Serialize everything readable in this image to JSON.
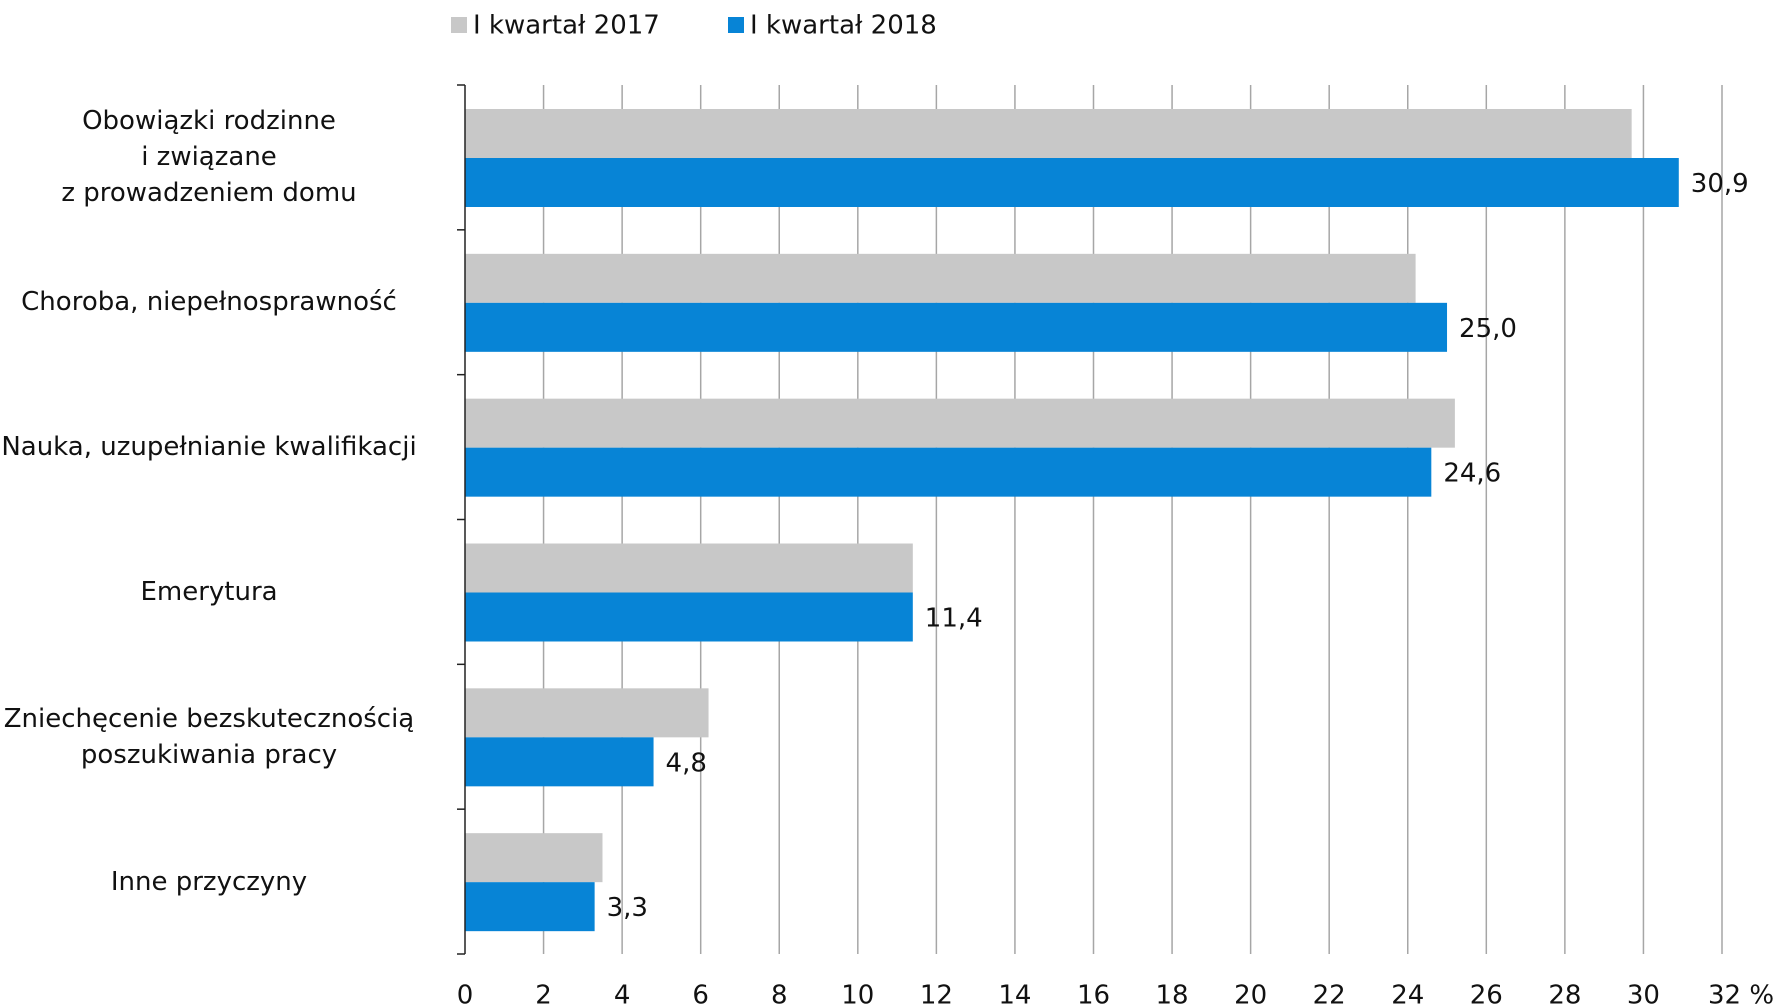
{
  "chart_data": {
    "type": "bar",
    "orientation": "horizontal",
    "categories": [
      "Obowiązki rodzinne\ni związane\nz prowadzeniem domu",
      "Choroba, niepełnosprawność",
      "Nauka, uzupełnianie kwalifikacji",
      "Emerytura",
      "Zniechęcenie bezskutecznością\nposzukiwania pracy",
      "Inne przyczyny"
    ],
    "series": [
      {
        "name": "I kwartał 2017",
        "color": "#c8c8c8",
        "values": [
          29.7,
          24.2,
          25.2,
          11.4,
          6.2,
          3.5
        ]
      },
      {
        "name": "I kwartał 2018",
        "color": "#0784d6",
        "values": [
          30.9,
          25.0,
          24.6,
          11.4,
          4.8,
          3.3
        ],
        "value_labels": [
          "30,9",
          "25,0",
          "24,6",
          "11,4",
          "4,8",
          "3,3"
        ]
      }
    ],
    "xlim": [
      0,
      32
    ],
    "xticks": [
      0,
      2,
      4,
      6,
      8,
      10,
      12,
      14,
      16,
      18,
      20,
      22,
      24,
      26,
      28,
      30,
      {
        "value": 32,
        "label": "32 %"
      }
    ],
    "grid": true,
    "legend": "top"
  }
}
